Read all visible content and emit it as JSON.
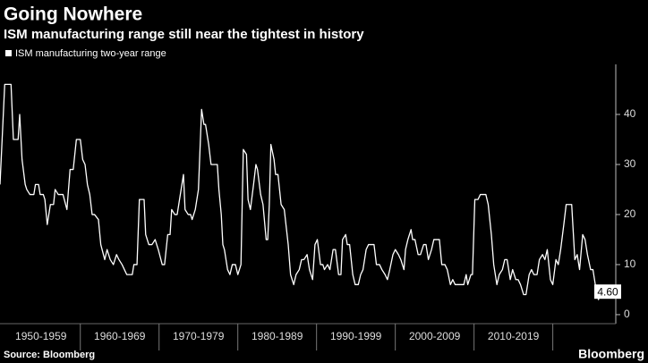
{
  "chart_data": {
    "type": "line",
    "title": "Going Nowhere",
    "subtitle": "ISM manufacturing range still near the tightest in history",
    "source": "Source: Bloomberg",
    "brand": "Bloomberg",
    "legend": "top-left",
    "grid": false,
    "xlim": [
      1949.8,
      2028.0
    ],
    "xticks": [
      {
        "value": 1955,
        "label": "1950-1959"
      },
      {
        "value": 1965,
        "label": "1960-1969"
      },
      {
        "value": 1975,
        "label": "1970-1979"
      },
      {
        "value": 1985,
        "label": "1980-1989"
      },
      {
        "value": 1995,
        "label": "1990-1999"
      },
      {
        "value": 2005,
        "label": "2000-2009"
      },
      {
        "value": 2015,
        "label": "2010-2019"
      }
    ],
    "ylim": [
      -1.8,
      50
    ],
    "yticks": [
      0,
      10,
      20,
      30,
      40
    ],
    "x": [
      1949.8,
      1950.4,
      1951.2,
      1951.5,
      1952.1,
      1952.3,
      1952.6,
      1953.0,
      1953.2,
      1953.6,
      1954.1,
      1954.3,
      1954.7,
      1954.9,
      1955.3,
      1955.5,
      1955.8,
      1956.2,
      1956.6,
      1956.8,
      1957.2,
      1957.8,
      1958.3,
      1958.7,
      1959.1,
      1959.5,
      1960.0,
      1960.3,
      1960.6,
      1960.9,
      1961.2,
      1961.5,
      1961.8,
      1962.3,
      1962.6,
      1963.1,
      1963.4,
      1963.8,
      1964.2,
      1964.6,
      1964.9,
      1965.3,
      1965.6,
      1965.9,
      1966.3,
      1966.6,
      1966.8,
      1967.2,
      1967.5,
      1968.1,
      1968.3,
      1968.7,
      1969.1,
      1969.5,
      1969.9,
      1970.4,
      1970.7,
      1971.1,
      1971.4,
      1971.6,
      1972.0,
      1972.3,
      1972.5,
      1972.9,
      1973.1,
      1973.3,
      1973.7,
      1974.0,
      1974.2,
      1974.6,
      1975.0,
      1975.4,
      1975.7,
      1975.9,
      1976.3,
      1976.6,
      1977.1,
      1977.4,
      1977.6,
      1977.9,
      1978.1,
      1978.3,
      1978.7,
      1979.0,
      1979.3,
      1979.7,
      1980.0,
      1980.4,
      1980.7,
      1981.1,
      1981.3,
      1981.6,
      1982.0,
      1982.3,
      1982.5,
      1982.9,
      1983.2,
      1983.6,
      1983.8,
      1984.0,
      1984.2,
      1984.6,
      1984.8,
      1985.1,
      1985.5,
      1985.9,
      1986.4,
      1986.7,
      1987.1,
      1987.4,
      1987.8,
      1988.1,
      1988.4,
      1988.8,
      1989.1,
      1989.5,
      1989.8,
      1990.1,
      1990.5,
      1990.8,
      1991.0,
      1991.4,
      1991.7,
      1992.1,
      1992.4,
      1992.8,
      1993.1,
      1993.3,
      1993.7,
      1993.9,
      1994.2,
      1994.6,
      1994.9,
      1995.3,
      1995.6,
      1995.9,
      1996.3,
      1996.6,
      1997.0,
      1997.3,
      1997.6,
      1998.0,
      1998.3,
      1998.7,
      1999.0,
      1999.3,
      1999.7,
      2000.0,
      2000.4,
      2000.7,
      2001.1,
      2001.3,
      2001.6,
      2002.0,
      2002.2,
      2002.5,
      2002.9,
      2003.2,
      2003.6,
      2003.9,
      2004.2,
      2004.6,
      2004.9,
      2005.3,
      2005.6,
      2005.9,
      2006.3,
      2006.6,
      2007.0,
      2007.3,
      2007.6,
      2008.0,
      2008.3,
      2008.7,
      2009.0,
      2009.2,
      2009.6,
      2009.8,
      2010.1,
      2010.5,
      2010.8,
      2011.2,
      2011.5,
      2011.8,
      2012.2,
      2012.5,
      2012.9,
      2013.2,
      2013.6,
      2013.9,
      2014.2,
      2014.6,
      2014.9,
      2015.3,
      2015.6,
      2015.9,
      2016.3,
      2016.6,
      2017.0,
      2017.3,
      2017.6,
      2018.0,
      2018.3,
      2018.7,
      2019.0,
      2019.3,
      2019.7,
      2020.0,
      2020.4,
      2020.7,
      2021.0,
      2021.4,
      2021.7,
      2022.1,
      2022.4,
      2022.8,
      2023.1,
      2023.4,
      2023.8,
      2024.1,
      2024.4,
      2024.8,
      2025.1,
      2025.5,
      2025.8,
      2026.1,
      2026.5
    ],
    "series": [
      {
        "name": "ISM manufacturing two-year range",
        "color": "#ffffff",
        "values": [
          26,
          46,
          46,
          35,
          35,
          40,
          31,
          26,
          25,
          24,
          24,
          26,
          26,
          24,
          24,
          23,
          18,
          22,
          22,
          25,
          24,
          24,
          21,
          29,
          29,
          35,
          35,
          31,
          30,
          26,
          24,
          20,
          20,
          19,
          14,
          11,
          13,
          11,
          10,
          12,
          11,
          10,
          9,
          8,
          8,
          8,
          10,
          10,
          23,
          23,
          16,
          14,
          14,
          15,
          13,
          10,
          10,
          16,
          16,
          21,
          20,
          20,
          22,
          26,
          28,
          21,
          20,
          20,
          19,
          21,
          25,
          41,
          38,
          38,
          34,
          30,
          30,
          30,
          25,
          20,
          14,
          13,
          9,
          8,
          10,
          10,
          8,
          10,
          33,
          32,
          23,
          21,
          26,
          30,
          29,
          24,
          22,
          15,
          15,
          22,
          34,
          31,
          28,
          28,
          22,
          21,
          14,
          8,
          6,
          8,
          9,
          11,
          11,
          12,
          9,
          7,
          14,
          15,
          10,
          10,
          9,
          10,
          9,
          13,
          13,
          8,
          8,
          15,
          16,
          14,
          14,
          8,
          6,
          6,
          8,
          9,
          13,
          14,
          14,
          14,
          10,
          10,
          9,
          8,
          7,
          9,
          12,
          13,
          12,
          11,
          9,
          13,
          15,
          17,
          15,
          15,
          12,
          12,
          14,
          14,
          11,
          13,
          15,
          15,
          15,
          10,
          10,
          9,
          6,
          7,
          6,
          6,
          6,
          6,
          8,
          6,
          8,
          8,
          23,
          23,
          24,
          24,
          24,
          22,
          16,
          10,
          6,
          8,
          9,
          11,
          11,
          7,
          9,
          7,
          7,
          6,
          4,
          4,
          8,
          9,
          8,
          8,
          11,
          12,
          11,
          13,
          7,
          6,
          11,
          10,
          13,
          18,
          22,
          22,
          22,
          11,
          12,
          9,
          16,
          15,
          12,
          9,
          9,
          5,
          3,
          4.6,
          4.6
        ],
        "value_labels": [
          null,
          null,
          null,
          null,
          null,
          null,
          null,
          null,
          null,
          null,
          null,
          null,
          null,
          null,
          null,
          null,
          null,
          null,
          null,
          null,
          null,
          null,
          null,
          null,
          null,
          null,
          null,
          null,
          null,
          null,
          null,
          null,
          null,
          null,
          null,
          null,
          null,
          null,
          null,
          null,
          null,
          null,
          null,
          null,
          null,
          null,
          null,
          null,
          null,
          null,
          null,
          null,
          null,
          null,
          null,
          null,
          null,
          null,
          null,
          null,
          null,
          null,
          null,
          null,
          null,
          null,
          null,
          null,
          null,
          null,
          null,
          null,
          null,
          null,
          null,
          null,
          null,
          null,
          null,
          null,
          null,
          null,
          null,
          null,
          null,
          null,
          null,
          null,
          null,
          null,
          null,
          null,
          null,
          null,
          null,
          null,
          null,
          null,
          null,
          null,
          null,
          null,
          null,
          null,
          null,
          null,
          null,
          null,
          null,
          null,
          null,
          null,
          null,
          null,
          null,
          null,
          null,
          null,
          null,
          null,
          null,
          null,
          null,
          null,
          null,
          null,
          null,
          null,
          null,
          null,
          null,
          null,
          null,
          null,
          null,
          null,
          null,
          null,
          null,
          null,
          null,
          null,
          null,
          null,
          null,
          null,
          null,
          null,
          null,
          null,
          null,
          null,
          null,
          null,
          null,
          null,
          null,
          null,
          null,
          null,
          null,
          null,
          null,
          null,
          null,
          null,
          null,
          null,
          null,
          null,
          null,
          null,
          null,
          null,
          null,
          null,
          null,
          null,
          null,
          null,
          null,
          null,
          null,
          null,
          null,
          null,
          null,
          null,
          null,
          null,
          null,
          null,
          null,
          null,
          null,
          null,
          null,
          null,
          null,
          null,
          null,
          null,
          null,
          null,
          null,
          null,
          null,
          null,
          null,
          null,
          null,
          null,
          null,
          null,
          null,
          null,
          null,
          null,
          null,
          null,
          null,
          null,
          null,
          null,
          null,
          null,
          "4.60"
        ]
      }
    ]
  }
}
